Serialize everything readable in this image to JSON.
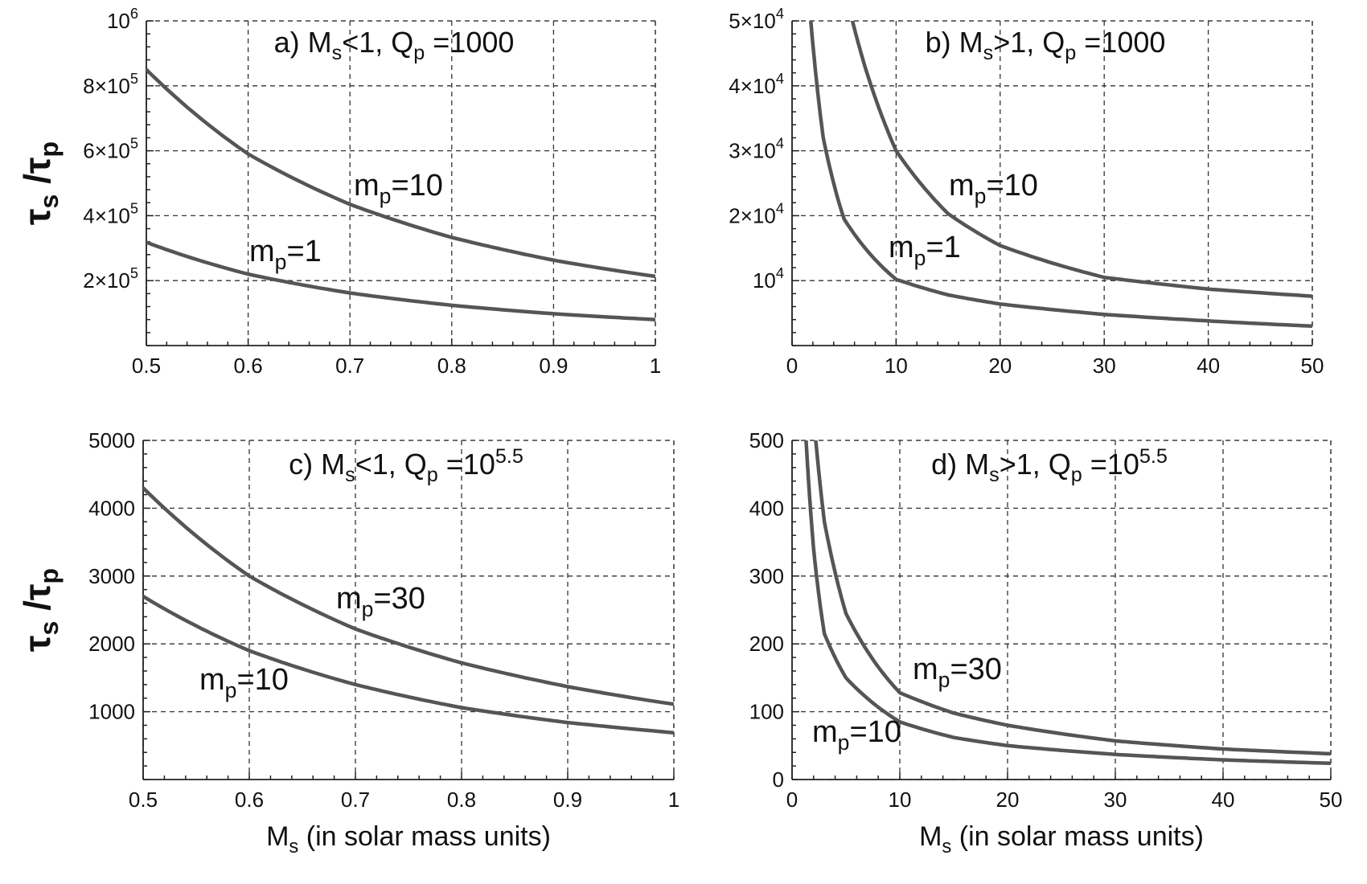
{
  "chart_data": [
    {
      "type": "line",
      "title": "a) Ms<1, Qp =1000",
      "title_parts": {
        "prefix": "a) M",
        "sub1": "s",
        "mid": "<1, Q",
        "sub2": "p",
        "suffix": " =1000",
        "sup": ""
      },
      "xlim": [
        0.5,
        1
      ],
      "ylim": [
        0,
        1000000
      ],
      "x_ticks": [
        0.5,
        0.6,
        0.7,
        0.8,
        0.9,
        1
      ],
      "x_tick_labels": [
        "0.5",
        "0.6",
        "0.7",
        "0.8",
        "0.9",
        "1"
      ],
      "y_ticks": [
        200000,
        400000,
        600000,
        800000,
        1000000
      ],
      "y_tick_labels": [
        {
          "base": "2×10",
          "exp": "5"
        },
        {
          "base": "4×10",
          "exp": "5"
        },
        {
          "base": "6×10",
          "exp": "5"
        },
        {
          "base": "8×10",
          "exp": "5"
        },
        {
          "base": "10",
          "exp": "6"
        }
      ],
      "xlabel": "",
      "ylabel": "τs / τp",
      "grid": true,
      "series": [
        {
          "name": "mp=10",
          "x": [
            0.5,
            0.6,
            0.7,
            0.8,
            0.9,
            1
          ],
          "values": [
            850000,
            590000,
            435000,
            333000,
            263000,
            213000
          ],
          "label": {
            "main": "m",
            "sub": "p",
            "rest": "=10"
          }
        },
        {
          "name": "mp=1",
          "x": [
            0.5,
            0.6,
            0.7,
            0.8,
            0.9,
            1
          ],
          "values": [
            318000,
            220000,
            162000,
            124000,
            98000,
            80000
          ],
          "label": {
            "main": "m",
            "sub": "p",
            "rest": "=1"
          }
        }
      ]
    },
    {
      "type": "line",
      "title": "b) Ms>1, Qp =1000",
      "title_parts": {
        "prefix": "b) M",
        "sub1": "s",
        "mid": ">1, Q",
        "sub2": "p",
        "suffix": " =1000",
        "sup": ""
      },
      "xlim": [
        0,
        50
      ],
      "ylim": [
        0,
        50000
      ],
      "x_ticks": [
        0,
        10,
        20,
        30,
        40,
        50
      ],
      "x_tick_labels": [
        "0",
        "10",
        "20",
        "30",
        "40",
        "50"
      ],
      "y_ticks": [
        10000,
        20000,
        30000,
        40000,
        50000
      ],
      "y_tick_labels": [
        {
          "base": "10",
          "exp": "4"
        },
        {
          "base": "2×10",
          "exp": "4"
        },
        {
          "base": "3×10",
          "exp": "4"
        },
        {
          "base": "4×10",
          "exp": "4"
        },
        {
          "base": "5×10",
          "exp": "4"
        }
      ],
      "xlabel": "",
      "ylabel": "",
      "grid": true,
      "series": [
        {
          "name": "mp=10",
          "x": [
            5.8,
            7,
            10,
            15,
            20,
            30,
            40,
            50
          ],
          "values": [
            50000,
            43000,
            30000,
            20300,
            15400,
            10500,
            8700,
            7600
          ],
          "label": {
            "main": "m",
            "sub": "p",
            "rest": "=10"
          }
        },
        {
          "name": "mp=1",
          "x": [
            1.8,
            3,
            5,
            10,
            15,
            20,
            30,
            40,
            50
          ],
          "values": [
            50000,
            32000,
            19500,
            10200,
            7800,
            6400,
            4800,
            3800,
            3000
          ],
          "label": {
            "main": "m",
            "sub": "p",
            "rest": "=1"
          }
        }
      ]
    },
    {
      "type": "line",
      "title": "c) Ms<1, Qp =10^5.5",
      "title_parts": {
        "prefix": "c) M",
        "sub1": "s",
        "mid": "<1, Q",
        "sub2": "p",
        "suffix": " =10",
        "sup": "5.5"
      },
      "xlim": [
        0.5,
        1
      ],
      "ylim": [
        0,
        5000
      ],
      "x_ticks": [
        0.5,
        0.6,
        0.7,
        0.8,
        0.9,
        1
      ],
      "x_tick_labels": [
        "0.5",
        "0.6",
        "0.7",
        "0.8",
        "0.9",
        "1"
      ],
      "y_ticks": [
        1000,
        2000,
        3000,
        4000,
        5000
      ],
      "y_tick_labels": [
        {
          "base": "1000",
          "exp": ""
        },
        {
          "base": "2000",
          "exp": ""
        },
        {
          "base": "3000",
          "exp": ""
        },
        {
          "base": "4000",
          "exp": ""
        },
        {
          "base": "5000",
          "exp": ""
        }
      ],
      "xlabel": "Ms (in solar mass units)",
      "xlabel_parts": {
        "main": "M",
        "sub": "s",
        "rest": " (in solar mass units)"
      },
      "ylabel": "τs / τp",
      "grid": true,
      "series": [
        {
          "name": "mp=30",
          "x": [
            0.5,
            0.6,
            0.7,
            0.8,
            0.9,
            1
          ],
          "values": [
            4300,
            3000,
            2220,
            1720,
            1370,
            1110
          ],
          "label": {
            "main": "m",
            "sub": "p",
            "rest": "=30"
          }
        },
        {
          "name": "mp=10",
          "x": [
            0.5,
            0.6,
            0.7,
            0.8,
            0.9,
            1
          ],
          "values": [
            2700,
            1900,
            1400,
            1060,
            840,
            690
          ],
          "label": {
            "main": "m",
            "sub": "p",
            "rest": "=10"
          }
        }
      ]
    },
    {
      "type": "line",
      "title": "d) Ms>1, Qp =10^5.5",
      "title_parts": {
        "prefix": "d) M",
        "sub1": "s",
        "mid": ">1, Q",
        "sub2": "p",
        "suffix": " =10",
        "sup": "5.5"
      },
      "xlim": [
        0,
        50
      ],
      "ylim": [
        0,
        500
      ],
      "x_ticks": [
        0,
        10,
        20,
        30,
        40,
        50
      ],
      "x_tick_labels": [
        "0",
        "10",
        "20",
        "30",
        "40",
        "50"
      ],
      "y_ticks": [
        0,
        100,
        200,
        300,
        400,
        500
      ],
      "y_tick_labels": [
        {
          "base": "0",
          "exp": ""
        },
        {
          "base": "100",
          "exp": ""
        },
        {
          "base": "200",
          "exp": ""
        },
        {
          "base": "300",
          "exp": ""
        },
        {
          "base": "400",
          "exp": ""
        },
        {
          "base": "500",
          "exp": ""
        }
      ],
      "xlabel": "Ms (in solar mass units)",
      "xlabel_parts": {
        "main": "M",
        "sub": "s",
        "rest": " (in solar mass units)"
      },
      "ylabel": "",
      "grid": true,
      "series": [
        {
          "name": "mp=30",
          "x": [
            2.2,
            3,
            5,
            10,
            15,
            20,
            30,
            40,
            50
          ],
          "values": [
            500,
            380,
            245,
            128,
            98,
            80,
            57,
            45,
            38
          ],
          "label": {
            "main": "m",
            "sub": "p",
            "rest": "=30"
          }
        },
        {
          "name": "mp=10",
          "x": [
            1.3,
            2,
            3,
            5,
            10,
            15,
            20,
            30,
            40,
            50
          ],
          "values": [
            500,
            340,
            215,
            150,
            85,
            62,
            50,
            37,
            29,
            24
          ],
          "label": {
            "main": "m",
            "sub": "p",
            "rest": "=10"
          }
        }
      ]
    }
  ],
  "y_axis_title": {
    "main": "τ",
    "sub1": "s",
    "slash": " /τ",
    "sub2": "p"
  }
}
